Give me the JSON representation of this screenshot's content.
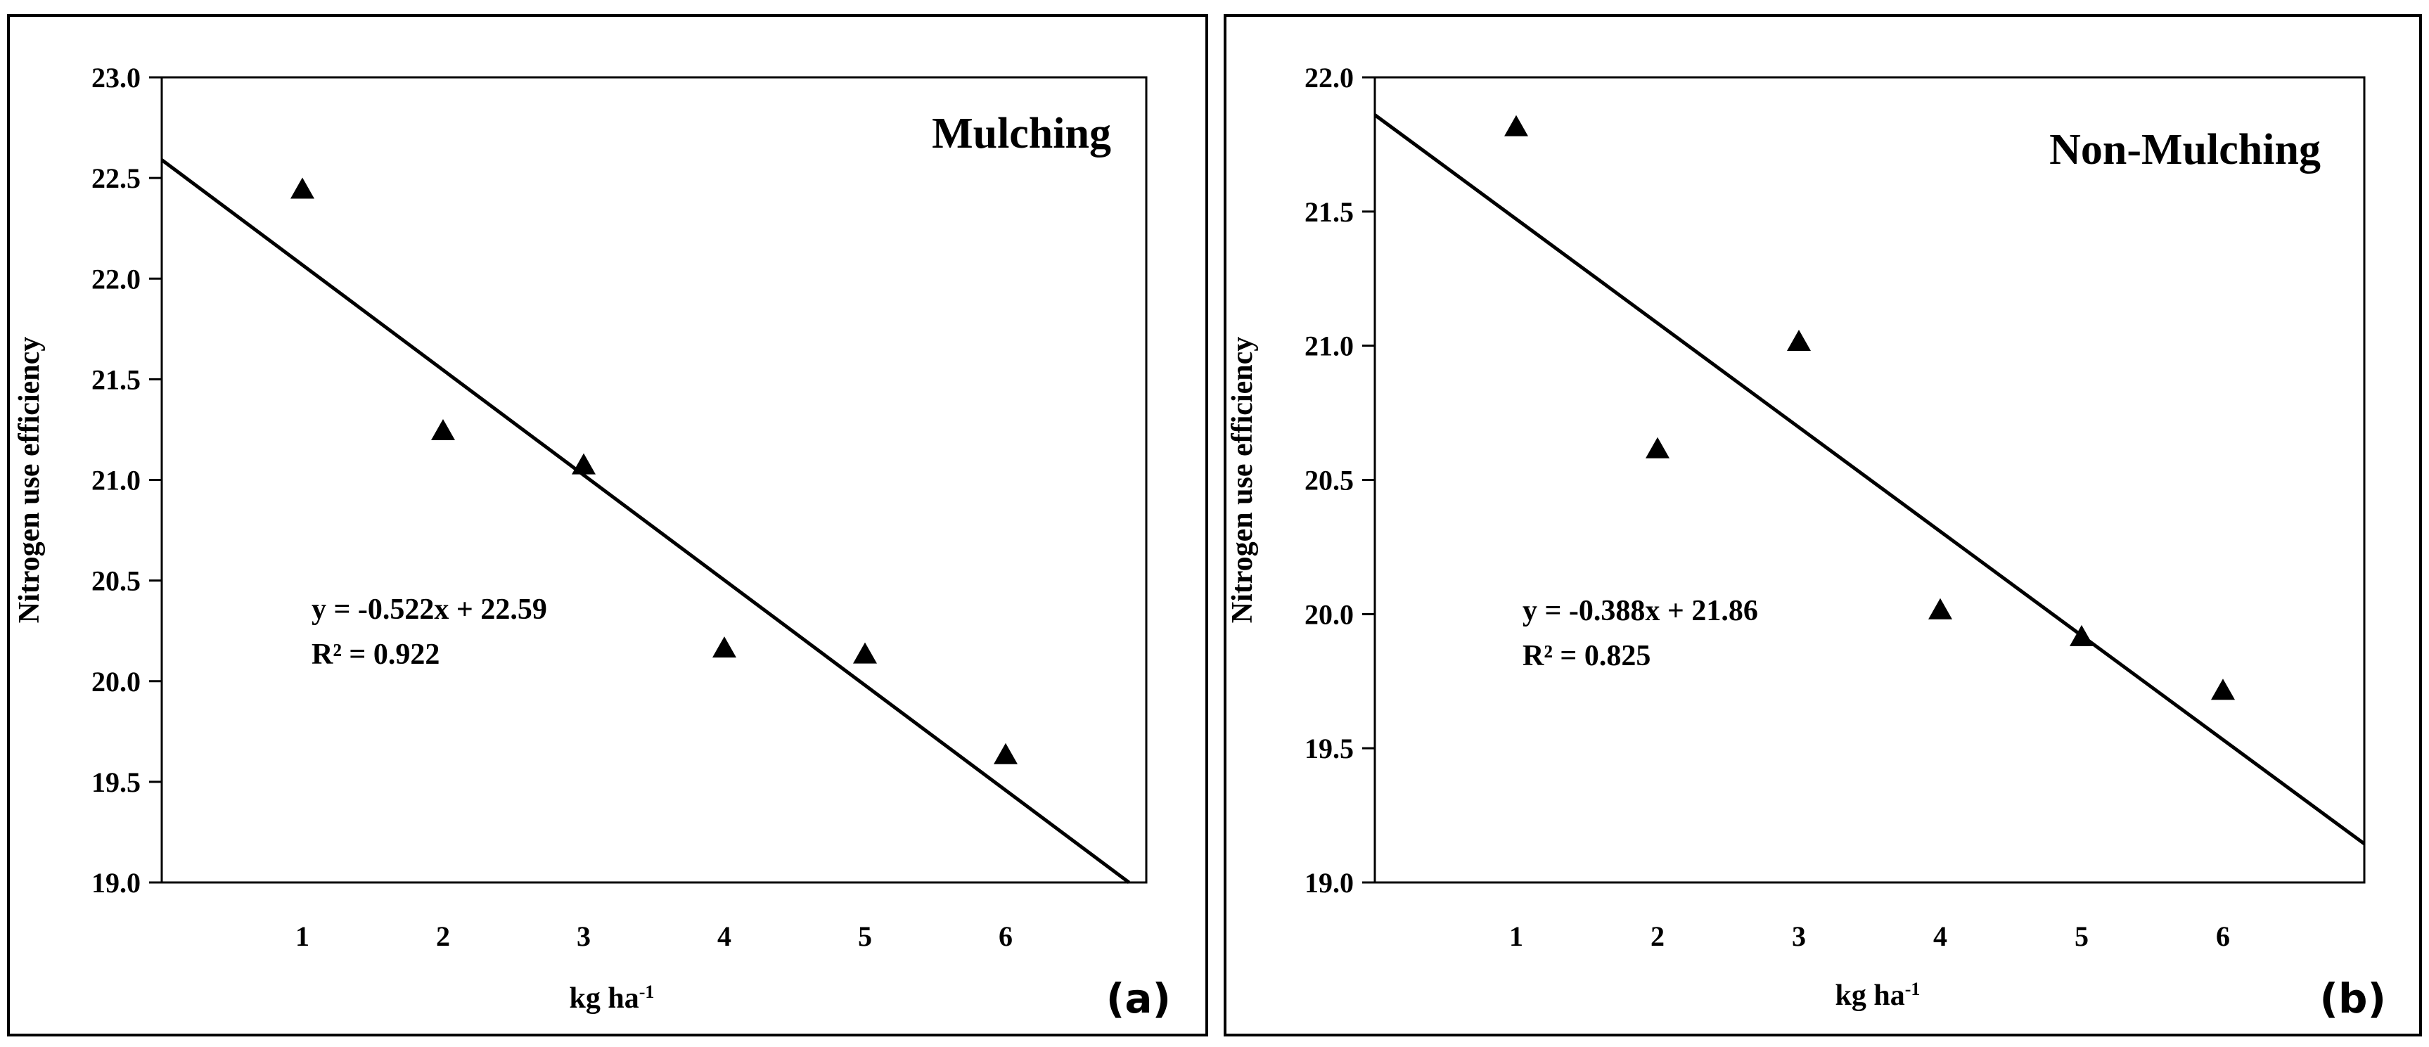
{
  "chart_data": [
    {
      "type": "scatter",
      "panel_label": "(a)",
      "title": "Mulching",
      "xlabel": "kg ha",
      "xlabel_sup": "-1",
      "ylabel": "Nitrogen use efficiency",
      "xlim": [
        0,
        7
      ],
      "ylim": [
        19.0,
        23.0
      ],
      "x_ticks": [
        1,
        2,
        3,
        4,
        5,
        6
      ],
      "y_ticks": [
        "19.0",
        "19.5",
        "20.0",
        "20.5",
        "21.0",
        "21.5",
        "22.0",
        "22.5",
        "23.0"
      ],
      "marker": "triangle",
      "x": [
        1,
        2,
        3,
        4,
        5,
        6
      ],
      "y": [
        22.45,
        21.25,
        21.08,
        20.17,
        20.14,
        19.64
      ],
      "trendline": {
        "slope": -0.522,
        "intercept": 22.59
      },
      "equation": "y = -0.522x + 22.59",
      "r2": "R² = 0.922"
    },
    {
      "type": "scatter",
      "panel_label": "(b)",
      "title": "Non-Mulching",
      "xlabel": "kg ha",
      "xlabel_sup": "-1",
      "ylabel": "Nitrogen use efficiency",
      "xlim": [
        0,
        7
      ],
      "ylim": [
        19.0,
        22.0
      ],
      "x_ticks": [
        1,
        2,
        3,
        4,
        5,
        6
      ],
      "y_ticks": [
        "19.0",
        "19.5",
        "20.0",
        "20.5",
        "21.0",
        "21.5",
        "22.0"
      ],
      "marker": "triangle",
      "x": [
        1,
        2,
        3,
        4,
        5,
        6
      ],
      "y": [
        21.82,
        20.62,
        21.02,
        20.02,
        19.92,
        19.72
      ],
      "trendline": {
        "slope": -0.388,
        "intercept": 21.86
      },
      "equation": "y = -0.388x + 21.86",
      "r2": "R² = 0.825"
    }
  ]
}
